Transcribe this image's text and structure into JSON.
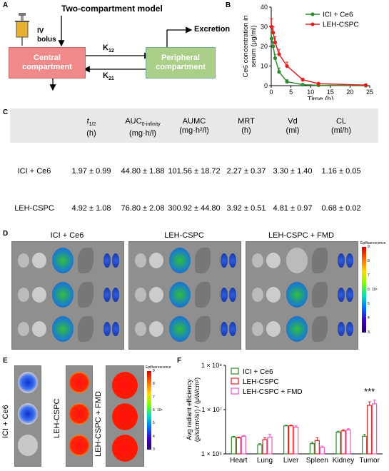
{
  "panels": {
    "a": "A",
    "b": "B",
    "c": "C",
    "d": "D",
    "e": "E",
    "f": "F"
  },
  "panel_a": {
    "title": "Two-compartment model",
    "iv_label": "IV\nbolus",
    "central": "Central\ncompartment",
    "peripheral": "Peripheral\ncompartment",
    "k12": "K",
    "k12_sub": "12",
    "k21": "K",
    "k21_sub": "21",
    "excretion": "Excretion"
  },
  "panel_b": {
    "ylabel": "Ce6 concentration in serum (μg/ml)",
    "xlabel": "Time (h)",
    "legend": [
      "ICI + Ce6",
      "LEH-CSPC"
    ],
    "colors": [
      "#2e8b2e",
      "#e02020"
    ]
  },
  "chart_data": [
    {
      "type": "line",
      "xlabel": "Time (h)",
      "ylabel": "Ce6 concentration in serum (μg/ml)",
      "xlim": [
        0,
        25
      ],
      "ylim": [
        0,
        40
      ],
      "xticks": [
        0,
        5,
        10,
        15,
        20,
        25
      ],
      "yticks": [
        0,
        10,
        20,
        30,
        40
      ],
      "series": [
        {
          "name": "ICI + Ce6",
          "x": [
            0.083,
            0.5,
            1,
            2,
            4,
            8,
            12,
            24
          ],
          "y": [
            24,
            20,
            14,
            7,
            2,
            0.5,
            0.2,
            0
          ],
          "err": [
            3,
            2.5,
            2,
            2,
            1,
            0.3,
            0.1,
            0
          ]
        },
        {
          "name": "LEH-CSPC",
          "x": [
            0.083,
            0.5,
            1,
            2,
            4,
            8,
            12,
            24
          ],
          "y": [
            30,
            27,
            22,
            16,
            10,
            3,
            1,
            0.3
          ],
          "err": [
            4,
            3,
            3,
            2.5,
            2,
            0.8,
            0.3,
            0.1
          ]
        }
      ]
    },
    {
      "type": "bar",
      "ylabel": "Avg radiant efficiency (p/s/cm²/sr) / (μW/cm²)",
      "yscale": "log",
      "ylim": [
        1000000,
        100000000
      ],
      "ytick_labels": [
        "1 × 10⁶",
        "1 × 10⁷",
        "1 × 10⁸"
      ],
      "categories": [
        "Heart",
        "Lung",
        "Liver",
        "Spleen",
        "Kidney",
        "Tumor"
      ],
      "series": [
        {
          "name": "ICI + Ce6",
          "values": [
            2400000,
            1600000,
            4300000,
            1700000,
            3100000,
            2500000
          ],
          "err": [
            100000,
            100000,
            150000,
            150000,
            150000,
            250000
          ]
        },
        {
          "name": "LEH-CSPC",
          "values": [
            2300000,
            2100000,
            4300000,
            2000000,
            3300000,
            12500000
          ],
          "err": [
            100000,
            200000,
            150000,
            300000,
            200000,
            2500000
          ]
        },
        {
          "name": "LEH-CSPC + FMD",
          "values": [
            2500000,
            2400000,
            4000000,
            1400000,
            3500000,
            13500000
          ],
          "err": [
            100000,
            400000,
            300000,
            100000,
            200000,
            3000000
          ]
        }
      ],
      "colors": [
        "#2e8b2e",
        "#e02020",
        "#ee55bb"
      ],
      "annotation": "***"
    }
  ],
  "panel_c": {
    "headers": [
      {
        "main": "t",
        "sub": "1/2",
        "unit": "(h)"
      },
      {
        "main": "AUC",
        "sub": "0-infinity",
        "unit": "(mg·h/l)"
      },
      {
        "main": "AUMC",
        "sub": "",
        "unit": "(mg·h²/l)"
      },
      {
        "main": "MRT",
        "sub": "",
        "unit": "(h)"
      },
      {
        "main": "Vd",
        "sub": "",
        "unit": "(ml)"
      },
      {
        "main": "CL",
        "sub": "",
        "unit": "(ml/h)"
      }
    ],
    "rows": [
      {
        "label": "ICI + Ce6",
        "values": [
          "1.97 ± 0.99",
          "44.80 ± 1.88",
          "101.56 ± 18.72",
          "2.27 ± 0.37",
          "3.30 ± 1.40",
          "1.16 ± 0.05"
        ]
      },
      {
        "label": "LEH-CSPC",
        "values": [
          "4.92 ± 1.08",
          "76.80 ± 2.08",
          "300.92 ± 44.80",
          "3.92 ± 0.51",
          "4.81 ± 0.97",
          "0.68 ± 0.02"
        ]
      }
    ]
  },
  "panel_d": {
    "titles": [
      "ICI + Ce6",
      "LEH-CSPC",
      "LEH-CSPC + FMD"
    ],
    "cbar_title": "Epifluorescence",
    "cbar_ticks": [
      "9",
      "8",
      "7",
      "6",
      "5",
      "4",
      "3"
    ],
    "cbar_unit": "10⁸"
  },
  "panel_e": {
    "labels": [
      "ICI + Ce6",
      "LEH-CSPC",
      "LEH-CSPC + FMD"
    ],
    "cbar_title": "Epifluorescence",
    "cbar_ticks": [
      "9",
      "8",
      "7",
      "6",
      "5",
      "4",
      "3"
    ],
    "cbar_unit": "10⁸"
  },
  "panel_f": {
    "legend": [
      "ICI + Ce6",
      "LEH-CSPC",
      "LEH-CSPC + FMD"
    ]
  }
}
